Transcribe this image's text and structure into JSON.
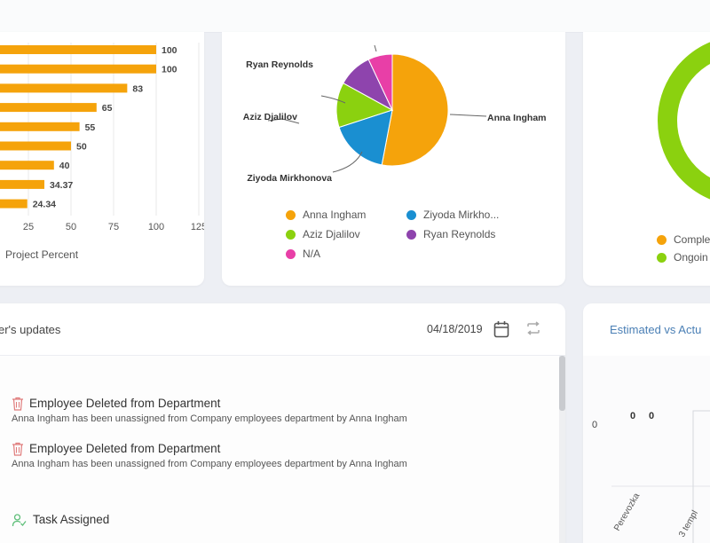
{
  "project_percent_chart": {
    "chart_data": {
      "type": "bar",
      "orientation": "horizontal",
      "values": [
        100,
        100,
        83,
        65,
        55,
        50,
        40,
        34.37,
        24.34
      ],
      "value_labels": [
        "100",
        "100",
        "83",
        "65",
        "55",
        "50",
        "40",
        "34.37",
        "24.34"
      ],
      "xlabel": "Project Percent",
      "xlim": [
        0,
        125
      ],
      "x_ticks": [
        "25",
        "50",
        "75",
        "100",
        "125"
      ],
      "grid": true,
      "bar_color": "#f5a30b"
    }
  },
  "assignee_pie_chart": {
    "chart_data": {
      "type": "pie",
      "labels": [
        "Anna Ingham",
        "Ziyoda Mirkhonova",
        "Aziz Djalilov",
        "Ryan Reynolds",
        "N/A"
      ],
      "values": [
        53,
        17,
        13,
        10,
        7
      ],
      "colors": [
        "#f5a30b",
        "#1a8fd1",
        "#8bd10f",
        "#8e44ad",
        "#e83fa7"
      ]
    },
    "legend": [
      "Anna Ingham",
      "Ziyoda Mirkho...",
      "Aziz Djalilov",
      "Ryan Reynolds",
      "N/A"
    ]
  },
  "status_donut": {
    "chart_data": {
      "type": "pie",
      "labels": [
        "Comple",
        "Ongoin"
      ],
      "colors": [
        "#f5a30b",
        "#8bd10f"
      ]
    },
    "legend": [
      "Comple",
      "Ongoin"
    ]
  },
  "updates": {
    "title": "er's updates",
    "date": "04/18/2019",
    "items": [
      {
        "title": "Employee Deleted from Department",
        "description": "Anna Ingham has been unassigned from Company employees department by Anna Ingham",
        "icon": "trash-icon"
      },
      {
        "title": "Employee Deleted from Department",
        "description": "Anna Ingham has been unassigned from Company employees department by Anna Ingham",
        "icon": "trash-icon"
      },
      {
        "title": "Task Assigned",
        "description": "",
        "icon": "user-check-icon"
      }
    ]
  },
  "estimated": {
    "title": "Estimated vs Actu",
    "chart_data": {
      "type": "bar",
      "y_tick": "0",
      "value_labels": [
        "0",
        "0"
      ],
      "categories": [
        "Perevozka",
        "3 templ"
      ]
    }
  },
  "colors": {
    "accent": "#f5a30b",
    "link": "#4a7fb5"
  }
}
